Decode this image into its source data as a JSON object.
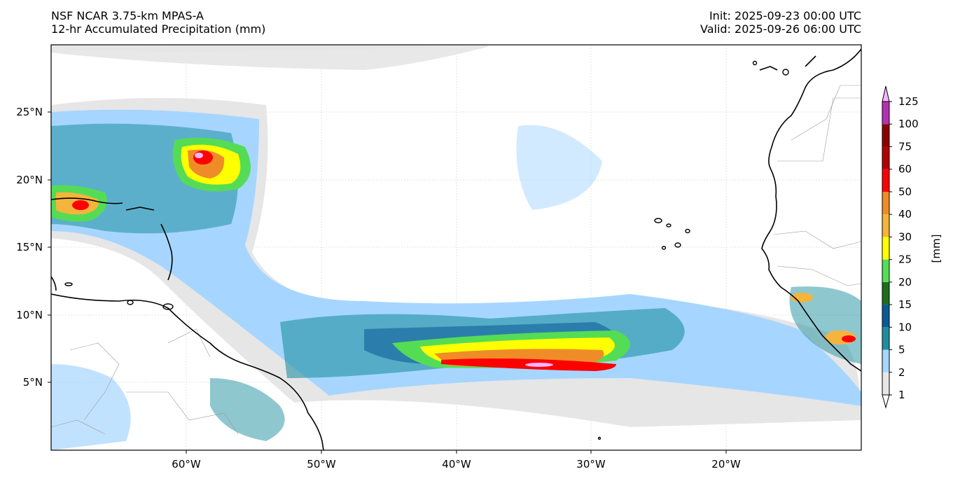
{
  "header": {
    "model": "NSF NCAR 3.75-km MPAS-A",
    "field": "12-hr Accumulated Precipitation (mm)",
    "init": "Init: 2025-09-23 00:00 UTC",
    "valid": "Valid: 2025-09-26 06:00 UTC"
  },
  "map": {
    "lon_ticks": [
      "60°W",
      "50°W",
      "40°W",
      "30°W",
      "20°W"
    ],
    "lat_ticks": [
      "25°N",
      "20°N",
      "15°N",
      "10°N",
      "5°N"
    ],
    "extent": {
      "lon": [
        -70,
        -10
      ],
      "lat": [
        0,
        30
      ]
    }
  },
  "colorbar": {
    "label": "[mm]",
    "levels": [
      "1",
      "2",
      "5",
      "10",
      "15",
      "20",
      "25",
      "30",
      "40",
      "50",
      "60",
      "75",
      "100",
      "125"
    ],
    "colors": [
      "#e6e6e6",
      "#a6d6ff",
      "#1f8fa0",
      "#0a5a96",
      "#1e6e1e",
      "#55dc55",
      "#ffff00",
      "#f5b43c",
      "#f08c28",
      "#ff0000",
      "#b40000",
      "#8c0000",
      "#b432b4",
      "#ffb4ff"
    ]
  }
}
